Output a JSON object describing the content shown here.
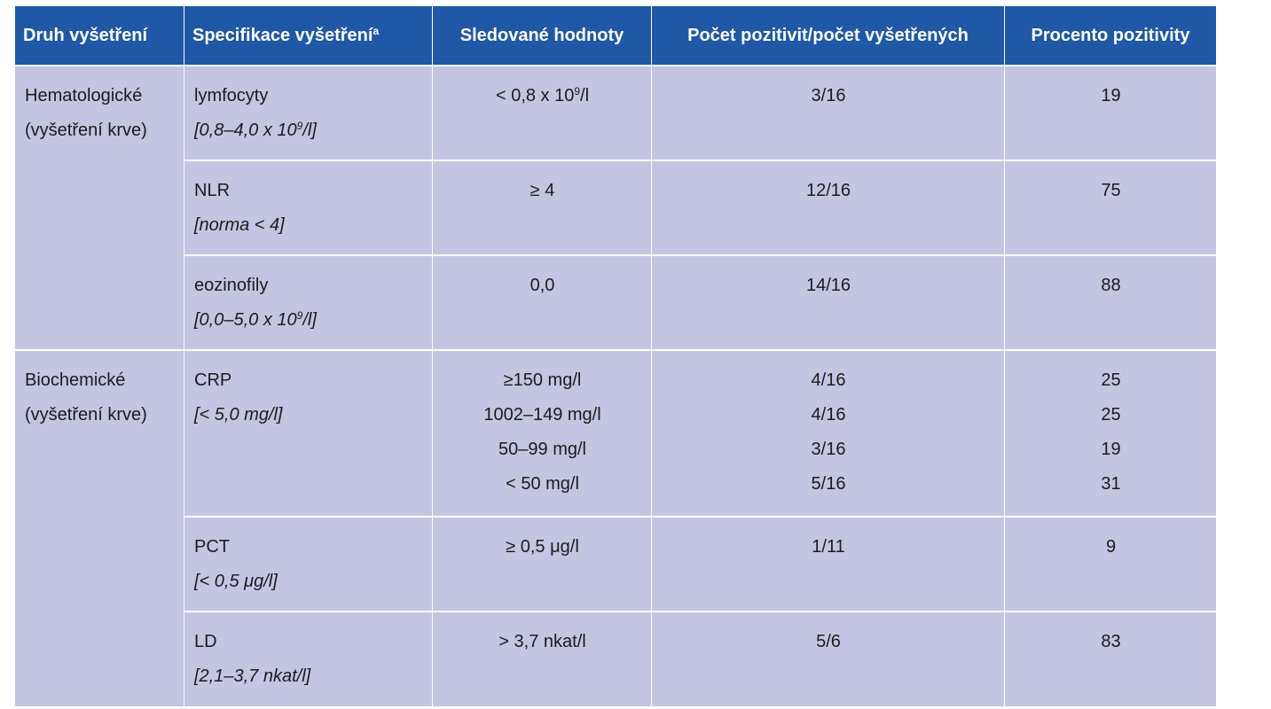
{
  "headers": [
    {
      "text": "Druh vyšetření",
      "sup": ""
    },
    {
      "text": "Specifikace vyšetření",
      "sup": "a"
    },
    {
      "text": "Sledované hodnoty",
      "sup": ""
    },
    {
      "text": "Počet pozitivit/počet vyšetřených",
      "sup": ""
    },
    {
      "text": "Procento pozitivity",
      "sup": ""
    }
  ],
  "groups": [
    {
      "category": [
        "Hematologické",
        "(vyšetření krve)"
      ],
      "rows": [
        {
          "spec_name": "lymfocyty",
          "spec_range": [
            "[0,8–4,0 x 10",
            "9",
            "/l]"
          ],
          "values": [
            [
              "< 0,8 x 10",
              "9",
              "/l"
            ]
          ],
          "counts": [
            "3/16"
          ],
          "percents": [
            "19"
          ]
        },
        {
          "spec_name": "NLR",
          "spec_range": [
            "[norma < 4]",
            "",
            ""
          ],
          "values": [
            [
              "≥ 4",
              "",
              ""
            ]
          ],
          "counts": [
            "12/16"
          ],
          "percents": [
            "75"
          ]
        },
        {
          "spec_name": "eozinofily",
          "spec_range": [
            "[0,0–5,0 x 10",
            "9",
            "/l]"
          ],
          "values": [
            [
              "0,0",
              "",
              ""
            ]
          ],
          "counts": [
            "14/16"
          ],
          "percents": [
            "88"
          ]
        }
      ]
    },
    {
      "category": [
        "Biochemické",
        "(vyšetření krve)"
      ],
      "rows": [
        {
          "spec_name": "CRP",
          "spec_range": [
            "[< 5,0 mg/l]",
            "",
            ""
          ],
          "values": [
            [
              "≥150 mg/l",
              "",
              ""
            ],
            [
              "1002–149 mg/l",
              "",
              ""
            ],
            [
              "50–99 mg/l",
              "",
              ""
            ],
            [
              "< 50 mg/l",
              "",
              ""
            ]
          ],
          "counts": [
            "4/16",
            "4/16",
            "3/16",
            "5/16"
          ],
          "percents": [
            "25",
            "25",
            "19",
            "31"
          ]
        },
        {
          "spec_name": "PCT",
          "spec_range": [
            "[< 0,5 μg/l]",
            "",
            ""
          ],
          "values": [
            [
              "≥ 0,5 μg/l",
              "",
              ""
            ]
          ],
          "counts": [
            "1/11"
          ],
          "percents": [
            "9"
          ]
        },
        {
          "spec_name": "LD",
          "spec_range": [
            "[2,1–3,7 nkat/l]",
            "",
            ""
          ],
          "values": [
            [
              "> 3,7 nkat/l",
              "",
              ""
            ]
          ],
          "counts": [
            "5/6"
          ],
          "percents": [
            "83"
          ]
        }
      ]
    }
  ]
}
